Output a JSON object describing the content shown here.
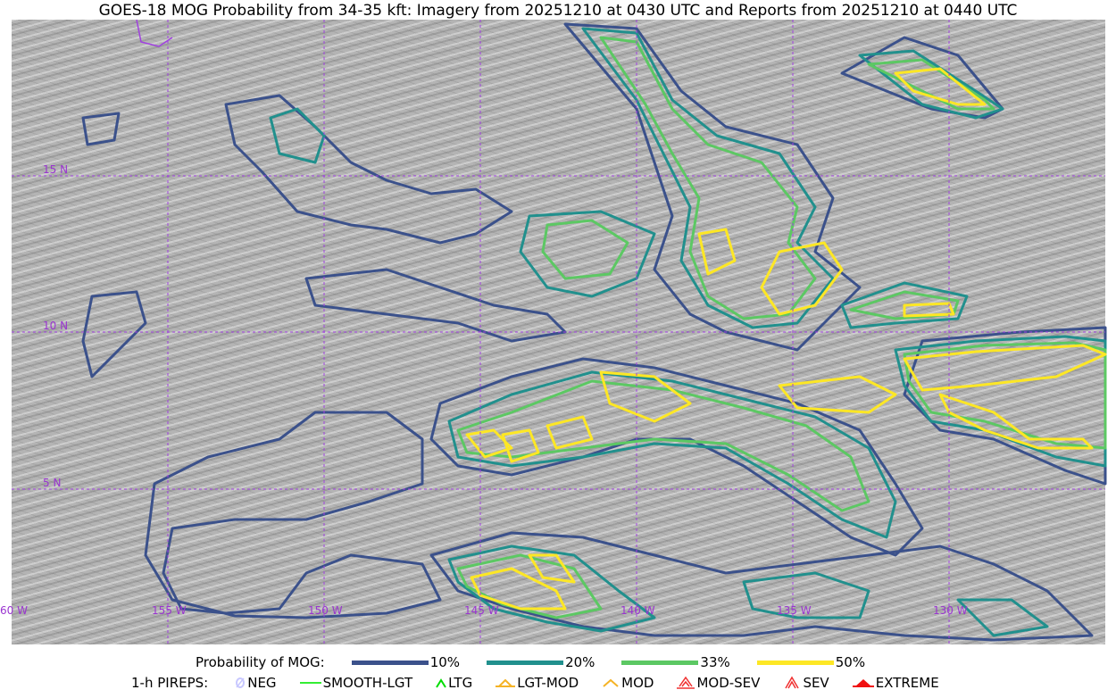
{
  "title": "GOES-18 MOG Probability from 34-35 kft: Imagery from 20251210 at 0430 UTC and Reports from 20251210 at 0440 UTC",
  "map": {
    "lat_labels": [
      "15 N",
      "10 N",
      "5 N"
    ],
    "lon_labels": [
      "60 W",
      "155 W",
      "150 W",
      "145 W",
      "140 W",
      "135 W",
      "130 W"
    ],
    "grid_color": "#a040e0"
  },
  "legend": {
    "probability": {
      "label": "Probability of MOG:",
      "items": [
        {
          "label": "10%",
          "color": "#3b518b"
        },
        {
          "label": "20%",
          "color": "#21908d"
        },
        {
          "label": "33%",
          "color": "#5cc863"
        },
        {
          "label": "50%",
          "color": "#fde725"
        }
      ]
    },
    "pireps": {
      "label": "1-h PIREPS:",
      "items": [
        {
          "label": "NEG",
          "icon": "neg-icon",
          "color": "#c8c8ff"
        },
        {
          "label": "SMOOTH-LGT",
          "icon": "line-icon",
          "color": "#33ee33"
        },
        {
          "label": "LTG",
          "icon": "caret-icon",
          "color": "#00dd00"
        },
        {
          "label": "LGT-MOD",
          "icon": "lgt-mod-icon",
          "color": "#f5b325"
        },
        {
          "label": "MOD",
          "icon": "caret-icon",
          "color": "#f5b325"
        },
        {
          "label": "MOD-SEV",
          "icon": "mod-sev-icon",
          "color": "#f03030"
        },
        {
          "label": "SEV",
          "icon": "sev-icon",
          "color": "#f03030"
        },
        {
          "label": "EXTREME",
          "icon": "triangle-icon",
          "color": "#f01010"
        }
      ]
    }
  }
}
